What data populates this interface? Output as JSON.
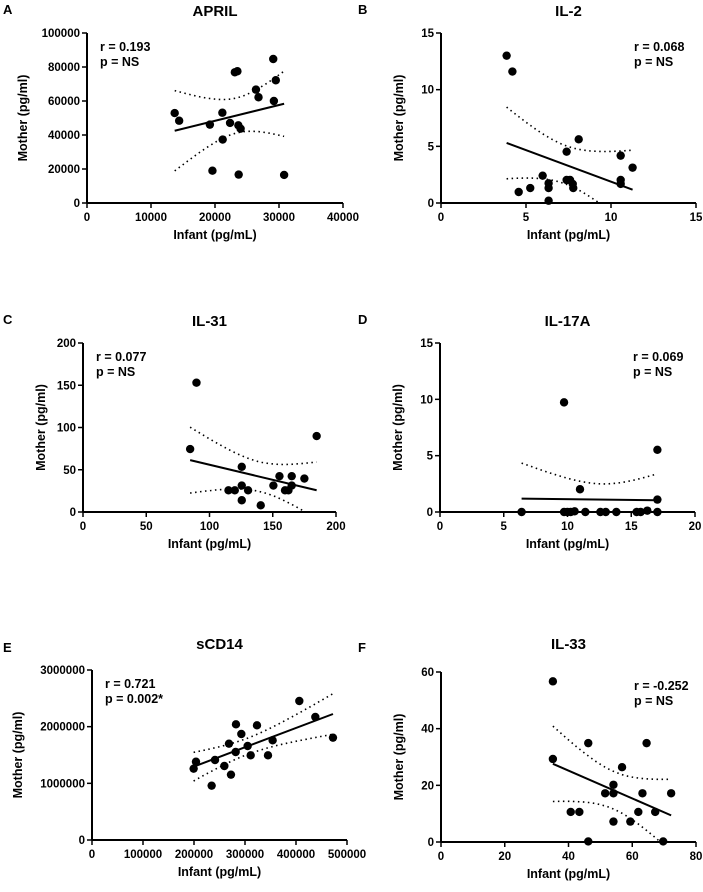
{
  "chart_data": [
    {
      "panel": "A",
      "type": "scatter",
      "title": "APRIL",
      "xlabel": "Infant (pg/mL)",
      "ylabel": "Mother (pg/ml)",
      "xlim": [
        0,
        40000
      ],
      "ylim": [
        0,
        100000
      ],
      "xticks": [
        "0",
        "10000",
        "20000",
        "30000",
        "40000"
      ],
      "yticks": [
        "0",
        "20000",
        "40000",
        "60000",
        "80000",
        "100000"
      ],
      "stats": [
        "r = 0.193",
        "p = NS"
      ],
      "stats_position": "top-left",
      "x": [
        13700,
        14400,
        19200,
        21150,
        19600,
        21200,
        22350,
        23100,
        23500,
        23650,
        24000,
        23700,
        26400,
        26800,
        29100,
        29500,
        29200,
        30800
      ],
      "y": [
        52900,
        48400,
        46100,
        53100,
        19000,
        37300,
        47100,
        76900,
        77500,
        45700,
        43700,
        16700,
        66700,
        62200,
        84700,
        72200,
        60000,
        16500
      ],
      "fit": {
        "x": [
          13700,
          30800
        ],
        "y": [
          42500,
          58400
        ]
      }
    },
    {
      "panel": "B",
      "type": "scatter",
      "title": "IL-2",
      "xlabel": "Infant (pg/mL)",
      "ylabel": "Mother (pg/ml)",
      "xlim": [
        0,
        15
      ],
      "ylim": [
        0,
        15
      ],
      "xticks": [
        "0",
        "5",
        "10",
        "15"
      ],
      "yticks": [
        "0",
        "5",
        "10",
        "15"
      ],
      "stats": [
        "r = 0.068",
        "p = NS"
      ],
      "stats_position": "top-right",
      "x": [
        3.86,
        4.2,
        4.57,
        5.25,
        5.98,
        6.33,
        6.33,
        6.33,
        7.39,
        7.39,
        7.59,
        7.75,
        7.78,
        8.1,
        10.57,
        10.57,
        10.57,
        11.27
      ],
      "y": [
        13.0,
        11.6,
        0.97,
        1.32,
        2.41,
        1.74,
        1.32,
        0.2,
        4.53,
        2.03,
        2.03,
        1.68,
        1.32,
        5.62,
        4.18,
        2.03,
        1.68,
        3.12
      ],
      "fit": {
        "x": [
          3.86,
          11.27
        ],
        "y": [
          5.3,
          1.18
        ]
      }
    },
    {
      "panel": "C",
      "type": "scatter",
      "title": "IL-31",
      "xlabel": "Infant (pg/mL)",
      "ylabel": "Mother (pg/ml)",
      "xlim": [
        0,
        200
      ],
      "ylim": [
        0,
        200
      ],
      "xticks": [
        "0",
        "50",
        "100",
        "150",
        "200"
      ],
      "yticks": [
        "0",
        "50",
        "100",
        "150",
        "200"
      ],
      "stats": [
        "r = 0.077",
        "p = NS"
      ],
      "stats_position": "top-left",
      "x": [
        84.7,
        89.7,
        115,
        120,
        125.5,
        125.5,
        125.5,
        130.5,
        140.5,
        150.5,
        155.3,
        159.7,
        162.4,
        165,
        165,
        175,
        184.7
      ],
      "y": [
        74.5,
        153,
        25.7,
        25.7,
        53.5,
        31.3,
        13.9,
        25.7,
        7.9,
        31.3,
        42.4,
        25.7,
        25.7,
        42.4,
        31.3,
        39.6,
        89.9
      ],
      "fit": {
        "x": [
          84.7,
          184.7
        ],
        "y": [
          61.4,
          25.7
        ]
      }
    },
    {
      "panel": "D",
      "type": "scatter",
      "title": "IL-17A",
      "xlabel": "Infant (pg/mL)",
      "ylabel": "Mother (pg/ml)",
      "xlim": [
        0,
        20
      ],
      "ylim": [
        0,
        15
      ],
      "xticks": [
        "0",
        "5",
        "10",
        "15",
        "20"
      ],
      "yticks": [
        "0",
        "5",
        "10",
        "15"
      ],
      "stats": [
        "r = 0.069",
        "p = NS"
      ],
      "stats_position": "top-right",
      "x": [
        6.4,
        9.73,
        9.73,
        9.99,
        10.25,
        10.56,
        10.98,
        11.4,
        12.58,
        13.0,
        13.83,
        15.42,
        15.74,
        16.26,
        17.05,
        17.05,
        17.05
      ],
      "y": [
        0,
        9.73,
        0,
        0,
        0,
        0.06,
        2.02,
        0,
        0,
        0,
        0,
        0,
        0,
        0.12,
        5.52,
        1.1,
        0
      ],
      "fit": {
        "x": [
          6.4,
          17.05
        ],
        "y": [
          1.19,
          1.04
        ]
      }
    },
    {
      "panel": "E",
      "type": "scatter",
      "title": "sCD14",
      "xlabel": "Infant (pg/mL)",
      "ylabel": "Mother (pg/ml)",
      "xlim": [
        0,
        500000
      ],
      "ylim": [
        0,
        3000000
      ],
      "xticks": [
        "0",
        "100000",
        "200000",
        "300000",
        "400000",
        "500000"
      ],
      "yticks": [
        "0",
        "1000000",
        "2000000",
        "3000000"
      ],
      "stats": [
        "r = 0.721",
        "p = 0.002*"
      ],
      "stats_position": "top-left",
      "x": [
        199300,
        203900,
        234600,
        241200,
        259500,
        268600,
        272500,
        281700,
        282300,
        292800,
        305200,
        311100,
        323500,
        345100,
        354200,
        406500,
        437900,
        472500
      ],
      "y": [
        1258800,
        1382000,
        958800,
        1411800,
        1305900,
        1700000,
        1152900,
        1552900,
        2041200,
        1870600,
        1658800,
        1494100,
        2023500,
        1494100,
        1758800,
        2452900,
        2170600,
        1805900
      ],
      "fit": {
        "x": [
          199300,
          472500
        ],
        "y": [
          1294000,
          2223500
        ]
      }
    },
    {
      "panel": "F",
      "type": "scatter",
      "title": "IL-33",
      "xlabel": "Infant (pg/mL)",
      "ylabel": "Mother (pg/ml)",
      "xlim": [
        0,
        80
      ],
      "ylim": [
        0,
        60
      ],
      "xticks": [
        "0",
        "20",
        "40",
        "60",
        "80"
      ],
      "yticks": [
        "0",
        "20",
        "40",
        "60"
      ],
      "stats": [
        "r = -0.252",
        "p = NS"
      ],
      "stats_position": "top-right",
      "x": [
        35.1,
        35.1,
        40.7,
        43.4,
        46.2,
        46.2,
        51.5,
        54.1,
        54.1,
        54.1,
        56.8,
        59.4,
        61.9,
        63.2,
        64.5,
        67.2,
        69.7,
        72.2
      ],
      "y": [
        56.7,
        29.3,
        10.6,
        10.6,
        34.9,
        0.2,
        17.2,
        20.2,
        17.2,
        7.2,
        26.4,
        7.2,
        10.6,
        17.2,
        34.9,
        10.6,
        0.2,
        17.2
      ],
      "fit": {
        "x": [
          35.1,
          72.2
        ],
        "y": [
          27.6,
          9.4
        ]
      }
    }
  ]
}
